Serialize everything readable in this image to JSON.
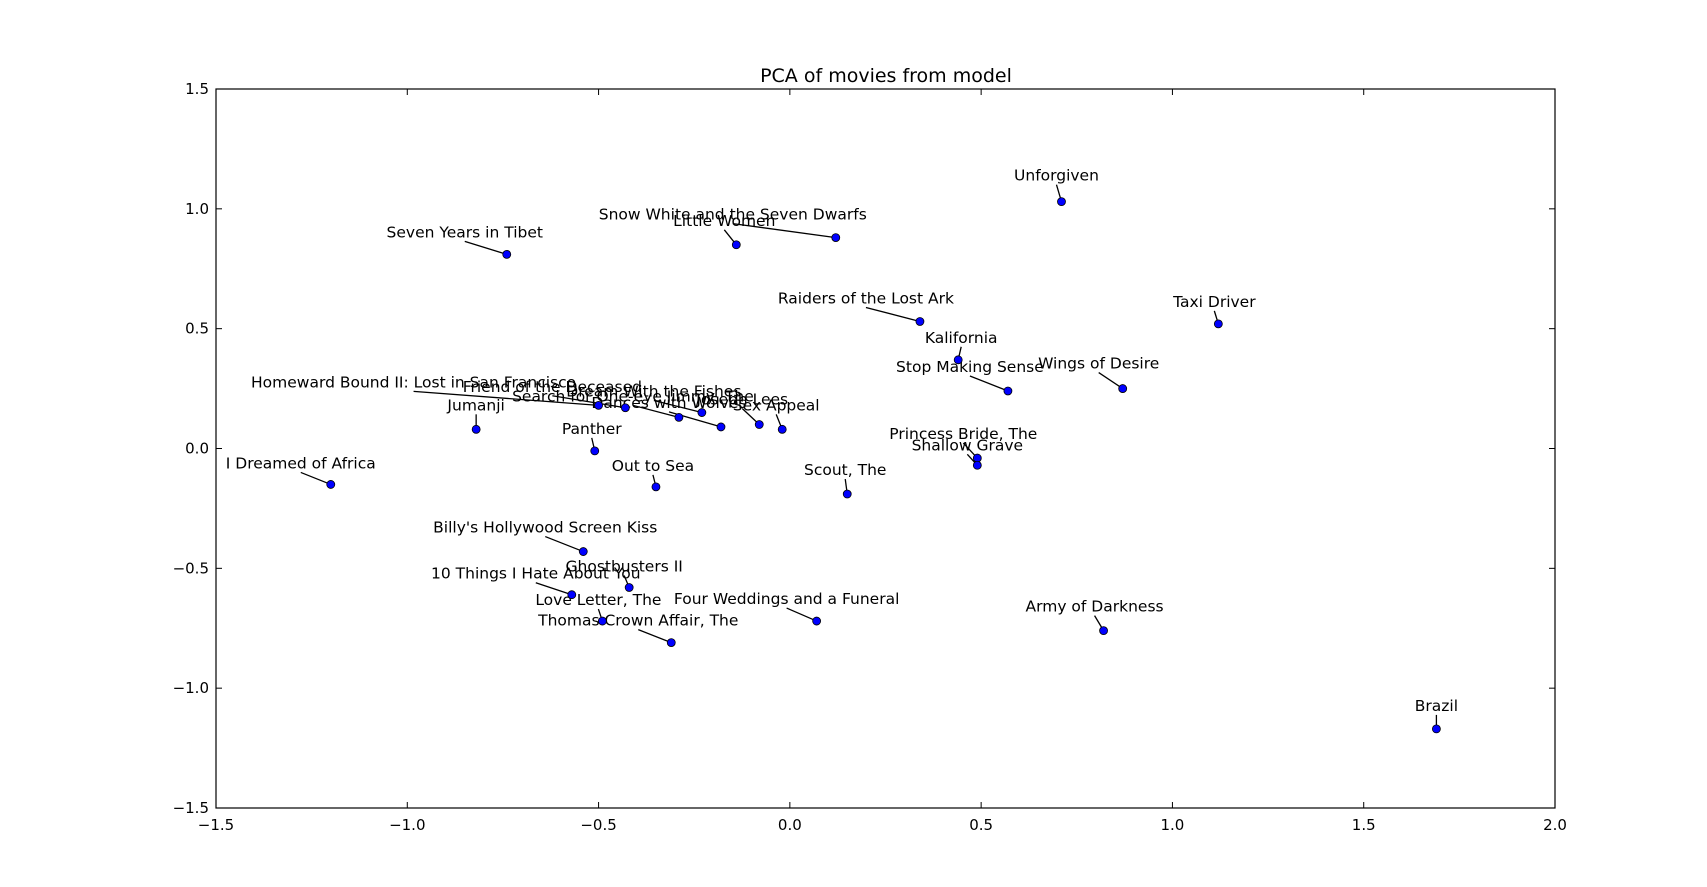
{
  "chart_data": {
    "type": "scatter",
    "title": "PCA of movies from model",
    "xlabel": "",
    "ylabel": "",
    "xlim": [
      -1.5,
      2.0
    ],
    "ylim": [
      -1.5,
      1.5
    ],
    "xticks": [
      -1.5,
      -1.0,
      -0.5,
      0.0,
      0.5,
      1.0,
      1.5,
      2.0
    ],
    "yticks": [
      -1.5,
      -1.0,
      -0.5,
      0.0,
      0.5,
      1.0,
      1.5
    ],
    "xtick_labels": [
      "−1.5",
      "−1.0",
      "−0.5",
      "0.0",
      "0.5",
      "1.0",
      "1.5",
      "2.0"
    ],
    "ytick_labels": [
      "−1.5",
      "−1.0",
      "−0.5",
      "0.0",
      "0.5",
      "1.0",
      "1.5"
    ],
    "grid": false,
    "marker_color": "#0000ff",
    "points": [
      {
        "label": "Unforgiven",
        "x": 0.71,
        "y": 1.03
      },
      {
        "label": "Snow White and the Seven Dwarfs",
        "x": 0.12,
        "y": 0.88
      },
      {
        "label": "Little Women",
        "x": -0.14,
        "y": 0.85
      },
      {
        "label": "Seven Years in Tibet",
        "x": -0.74,
        "y": 0.81
      },
      {
        "label": "Raiders of the Lost Ark",
        "x": 0.34,
        "y": 0.53
      },
      {
        "label": "Taxi Driver",
        "x": 1.12,
        "y": 0.52
      },
      {
        "label": "Kalifornia",
        "x": 0.44,
        "y": 0.37
      },
      {
        "label": "Stop Making Sense",
        "x": 0.57,
        "y": 0.24
      },
      {
        "label": "Wings of Desire",
        "x": 0.87,
        "y": 0.25
      },
      {
        "label": "Homeward Bound II: Lost in San Francisco",
        "x": -0.5,
        "y": 0.18
      },
      {
        "label": "Friend of the Deceased",
        "x": -0.43,
        "y": 0.17
      },
      {
        "label": "Dream With the Fishes",
        "x": -0.23,
        "y": 0.15
      },
      {
        "label": "Jumanji",
        "x": -0.82,
        "y": 0.08
      },
      {
        "label": "Search for One-eye Jimmy, The",
        "x": -0.29,
        "y": 0.13
      },
      {
        "label": "Dances with Wolves",
        "x": -0.18,
        "y": 0.09
      },
      {
        "label": "Joseph Lees",
        "x": -0.08,
        "y": 0.1
      },
      {
        "label": "Sex Appeal",
        "x": -0.02,
        "y": 0.08
      },
      {
        "label": "Panther",
        "x": -0.51,
        "y": -0.01
      },
      {
        "label": "Princess Bride, The",
        "x": 0.49,
        "y": -0.04
      },
      {
        "label": "Shallow Grave",
        "x": 0.49,
        "y": -0.07
      },
      {
        "label": "I Dreamed of Africa",
        "x": -1.2,
        "y": -0.15
      },
      {
        "label": "Out to Sea",
        "x": -0.35,
        "y": -0.16
      },
      {
        "label": "Scout, The",
        "x": 0.15,
        "y": -0.19
      },
      {
        "label": "Billy's Hollywood Screen Kiss",
        "x": -0.54,
        "y": -0.43
      },
      {
        "label": "Ghostbusters II",
        "x": -0.42,
        "y": -0.58
      },
      {
        "label": "10 Things I Hate About You",
        "x": -0.57,
        "y": -0.61
      },
      {
        "label": "Love Letter, The",
        "x": -0.49,
        "y": -0.72
      },
      {
        "label": "Four Weddings and a Funeral",
        "x": 0.07,
        "y": -0.72
      },
      {
        "label": "Army of Darkness",
        "x": 0.82,
        "y": -0.76
      },
      {
        "label": "Thomas Crown Affair, The",
        "x": -0.31,
        "y": -0.81
      },
      {
        "label": "Brazil",
        "x": 1.69,
        "y": -1.17
      }
    ]
  }
}
